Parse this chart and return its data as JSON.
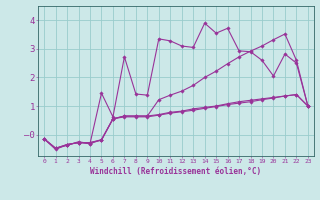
{
  "xlabel": "Windchill (Refroidissement éolien,°C)",
  "background_color": "#cce8e8",
  "grid_color": "#99cccc",
  "line_color": "#993399",
  "spine_color": "#336666",
  "xlim": [
    -0.5,
    23.5
  ],
  "ylim": [
    -0.75,
    4.5
  ],
  "yticks": [
    0,
    1,
    2,
    3,
    4
  ],
  "ytick_labels": [
    "–0",
    "1",
    "2",
    "3",
    "4"
  ],
  "xticks": [
    0,
    1,
    2,
    3,
    4,
    5,
    6,
    7,
    8,
    9,
    10,
    11,
    12,
    13,
    14,
    15,
    16,
    17,
    18,
    19,
    20,
    21,
    22,
    23
  ],
  "series": [
    [
      null,
      null,
      null,
      null,
      null,
      null,
      null,
      null,
      null,
      null,
      null,
      null,
      null,
      null,
      null,
      null,
      null,
      null,
      null,
      null,
      null,
      null,
      null,
      null
    ],
    [
      -0.15,
      -0.48,
      -0.38,
      -0.25,
      -0.32,
      1.45,
      0.62,
      2.72,
      1.42,
      1.38,
      3.35,
      3.28,
      3.1,
      3.05,
      3.9,
      3.55,
      3.72,
      2.93,
      2.9,
      2.6,
      2.05,
      2.82,
      2.5,
      1.0
    ],
    [
      -0.15,
      -0.48,
      -0.35,
      -0.28,
      -0.28,
      -0.2,
      0.55,
      0.65,
      0.65,
      0.65,
      0.7,
      0.78,
      0.82,
      0.9,
      0.95,
      1.0,
      1.08,
      1.15,
      1.2,
      1.25,
      1.3,
      1.35,
      1.4,
      1.0
    ],
    [
      -0.15,
      -0.48,
      -0.35,
      -0.28,
      -0.28,
      -0.18,
      0.55,
      0.65,
      0.65,
      0.65,
      1.22,
      1.38,
      1.52,
      1.72,
      2.0,
      2.22,
      2.48,
      2.72,
      2.92,
      3.1,
      3.32,
      3.52,
      2.6,
      1.0
    ],
    [
      -0.15,
      -0.52,
      -0.35,
      -0.28,
      -0.32,
      -0.18,
      0.55,
      0.62,
      0.62,
      0.62,
      0.68,
      0.75,
      0.8,
      0.85,
      0.92,
      0.98,
      1.05,
      1.1,
      1.15,
      1.22,
      1.28,
      1.35,
      1.4,
      1.0
    ]
  ]
}
